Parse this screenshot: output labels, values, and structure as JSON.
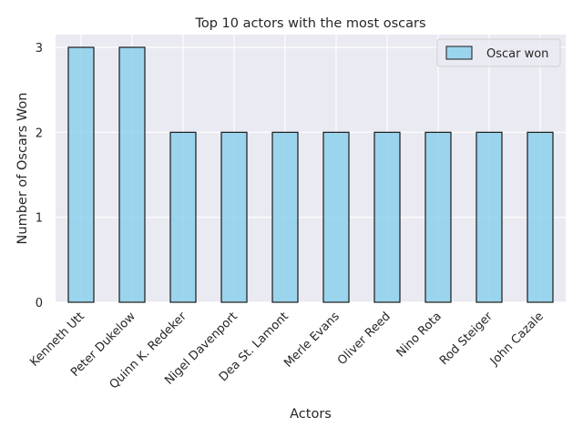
{
  "chart_data": {
    "type": "bar",
    "title": "Top 10 actors with the most oscars",
    "xlabel": "Actors",
    "ylabel": "Number of Oscars Won",
    "categories": [
      "Kenneth Utt",
      "Peter Dukelow",
      "Quinn K. Redeker",
      "Nigel Davenport",
      "Dea St. Lamont",
      "Merle Evans",
      "Oliver Reed",
      "Nino Rota",
      "Rod Steiger",
      "John Cazale"
    ],
    "series": [
      {
        "name": "Oscar won",
        "values": [
          3,
          3,
          2,
          2,
          2,
          2,
          2,
          2,
          2,
          2
        ]
      }
    ],
    "ylim": [
      0,
      3.15
    ],
    "yticks": [
      0,
      1,
      2,
      3
    ],
    "grid": true,
    "legend_position": "top-right",
    "colors": {
      "background": "#eaeaf2",
      "grid": "#ffffff",
      "bar_fill": "#87ceeb",
      "bar_edge": "#1a1a1a"
    }
  }
}
